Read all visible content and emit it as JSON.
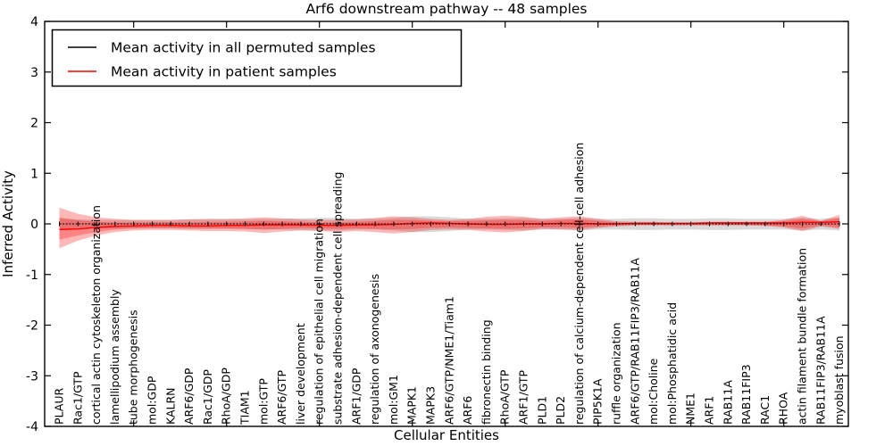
{
  "chart_data": {
    "type": "line",
    "title": "Arf6 downstream pathway -- 48 samples",
    "xlabel": "Cellular Entities",
    "ylabel": "Inferred Activity",
    "ylim": [
      -4,
      4
    ],
    "yticks": [
      -4,
      -3,
      -2,
      -1,
      0,
      1,
      2,
      3,
      4
    ],
    "xtick_values": [
      5,
      10,
      15,
      20,
      25,
      30,
      35,
      40
    ],
    "grid": false,
    "legend_position": "upper left",
    "categories": [
      "PLAUR",
      "Rac1/GTP",
      "cortical actin cytoskeleton organization",
      "lamellipodium assembly",
      "tube morphogenesis",
      "mol:GDP",
      "KALRN",
      "ARF6/GDP",
      "Rac1/GDP",
      "RhoA/GDP",
      "TIAM1",
      "mol:GTP",
      "ARF6/GTP",
      "liver development",
      "regulation of epithelial cell migration",
      "substrate adhesion-dependent cell spreading",
      "ARF1/GDP",
      "regulation of axonogenesis",
      "mol:GM1",
      "MAPK1",
      "MAPK3",
      "ARF6/GTP/NME1/Tiam1",
      "ARF6",
      "fibronectin binding",
      "RhoA/GTP",
      "ARF1/GTP",
      "PLD1",
      "PLD2",
      "regulation of calcium-dependent cell-cell adhesion",
      "PIP5K1A",
      "ruffle organization",
      "ARF6/GTP/RAB11FIP3/RAB11A",
      "mol:Choline",
      "mol:Phosphatidic acid",
      "NME1",
      "ARF1",
      "RAB11A",
      "RAB11FIP3",
      "RAC1",
      "RHOA",
      "actin filament bundle formation",
      "RAB11FIP3/RAB11A",
      "myoblast fusion"
    ],
    "series": [
      {
        "name": "Mean activity in all permuted samples",
        "color": "#000000",
        "band_color": "rgba(120,120,120,0.28)",
        "values": [
          0,
          0,
          0,
          0,
          0,
          0,
          0,
          0,
          0,
          0,
          0,
          0,
          0,
          0,
          0,
          0,
          0,
          0,
          0,
          0,
          0,
          0,
          0,
          0,
          0,
          0,
          0,
          0,
          0,
          0,
          0,
          0,
          0,
          0,
          0,
          0,
          0,
          0,
          0,
          0,
          0,
          0,
          0
        ],
        "band_upper": [
          0.1,
          0.09,
          0.08,
          0.08,
          0.08,
          0.08,
          0.08,
          0.09,
          0.09,
          0.09,
          0.09,
          0.1,
          0.1,
          0.11,
          0.12,
          0.12,
          0.1,
          0.1,
          0.12,
          0.15,
          0.15,
          0.13,
          0.1,
          0.1,
          0.11,
          0.12,
          0.1,
          0.1,
          0.12,
          0.1,
          0.1,
          0.11,
          0.11,
          0.1,
          0.1,
          0.11,
          0.11,
          0.1,
          0.1,
          0.1,
          0.12,
          0.1,
          0.12
        ],
        "band_lower": [
          -0.12,
          -0.1,
          -0.09,
          -0.09,
          -0.09,
          -0.09,
          -0.09,
          -0.1,
          -0.1,
          -0.1,
          -0.1,
          -0.11,
          -0.11,
          -0.12,
          -0.13,
          -0.13,
          -0.11,
          -0.11,
          -0.13,
          -0.16,
          -0.16,
          -0.14,
          -0.11,
          -0.11,
          -0.12,
          -0.13,
          -0.11,
          -0.11,
          -0.13,
          -0.11,
          -0.11,
          -0.12,
          -0.12,
          -0.11,
          -0.11,
          -0.12,
          -0.12,
          -0.11,
          -0.11,
          -0.11,
          -0.13,
          -0.11,
          -0.13
        ]
      },
      {
        "name": "Mean activity in patient samples",
        "color": "#ff0000",
        "band_color": "rgba(255,0,0,0.28)",
        "values": [
          -0.11,
          -0.1,
          -0.07,
          -0.05,
          -0.04,
          -0.03,
          -0.03,
          -0.04,
          -0.04,
          -0.03,
          -0.03,
          -0.02,
          -0.02,
          -0.02,
          -0.03,
          -0.03,
          -0.02,
          -0.02,
          -0.01,
          0.01,
          0.02,
          0.01,
          0,
          -0.01,
          -0.01,
          0,
          0,
          0.01,
          0.01,
          0,
          0,
          0.01,
          0.01,
          0.01,
          0.01,
          0.02,
          0.02,
          0.02,
          0.02,
          0.02,
          0.03,
          0.03,
          0.04
        ],
        "band_outer_upper": [
          0.32,
          0.2,
          0.13,
          0.1,
          0.08,
          0.08,
          0.08,
          0.09,
          0.1,
          0.1,
          0.11,
          0.13,
          0.11,
          0.09,
          0.08,
          0.08,
          0.09,
          0.12,
          0.15,
          0.13,
          0.1,
          0.08,
          0.1,
          0.14,
          0.16,
          0.14,
          0.1,
          0.13,
          0.15,
          0.1,
          0.05,
          0.04,
          0.04,
          0.03,
          0.03,
          0.04,
          0.04,
          0.04,
          0.04,
          0.08,
          0.16,
          0.06,
          0.18
        ],
        "band_outer_lower": [
          -0.48,
          -0.33,
          -0.23,
          -0.16,
          -0.13,
          -0.12,
          -0.12,
          -0.13,
          -0.14,
          -0.14,
          -0.15,
          -0.18,
          -0.15,
          -0.13,
          -0.14,
          -0.16,
          -0.14,
          -0.16,
          -0.19,
          -0.16,
          -0.12,
          -0.11,
          -0.12,
          -0.15,
          -0.17,
          -0.14,
          -0.1,
          -0.11,
          -0.12,
          -0.08,
          -0.05,
          -0.03,
          -0.03,
          -0.03,
          -0.03,
          -0.03,
          -0.03,
          -0.03,
          -0.04,
          -0.07,
          -0.14,
          -0.05,
          -0.1
        ],
        "band_inner_upper": [
          0.13,
          0.07,
          0.04,
          0.03,
          0.03,
          0.03,
          0.03,
          0.03,
          0.04,
          0.04,
          0.05,
          0.06,
          0.05,
          0.04,
          0.03,
          0.03,
          0.04,
          0.06,
          0.08,
          0.08,
          0.06,
          0.05,
          0.06,
          0.07,
          0.08,
          0.08,
          0.06,
          0.08,
          0.09,
          0.06,
          0.03,
          0.03,
          0.03,
          0.02,
          0.02,
          0.03,
          0.03,
          0.03,
          0.03,
          0.05,
          0.1,
          0.05,
          0.12
        ],
        "band_inner_lower": [
          -0.31,
          -0.23,
          -0.16,
          -0.11,
          -0.09,
          -0.08,
          -0.08,
          -0.09,
          -0.09,
          -0.09,
          -0.1,
          -0.11,
          -0.1,
          -0.08,
          -0.09,
          -0.1,
          -0.09,
          -0.1,
          -0.11,
          -0.1,
          -0.08,
          -0.07,
          -0.08,
          -0.09,
          -0.1,
          -0.09,
          -0.07,
          -0.07,
          -0.08,
          -0.05,
          -0.03,
          -0.02,
          -0.02,
          -0.02,
          -0.02,
          -0.02,
          -0.02,
          -0.02,
          -0.03,
          -0.05,
          -0.09,
          -0.03,
          -0.07
        ]
      }
    ]
  }
}
